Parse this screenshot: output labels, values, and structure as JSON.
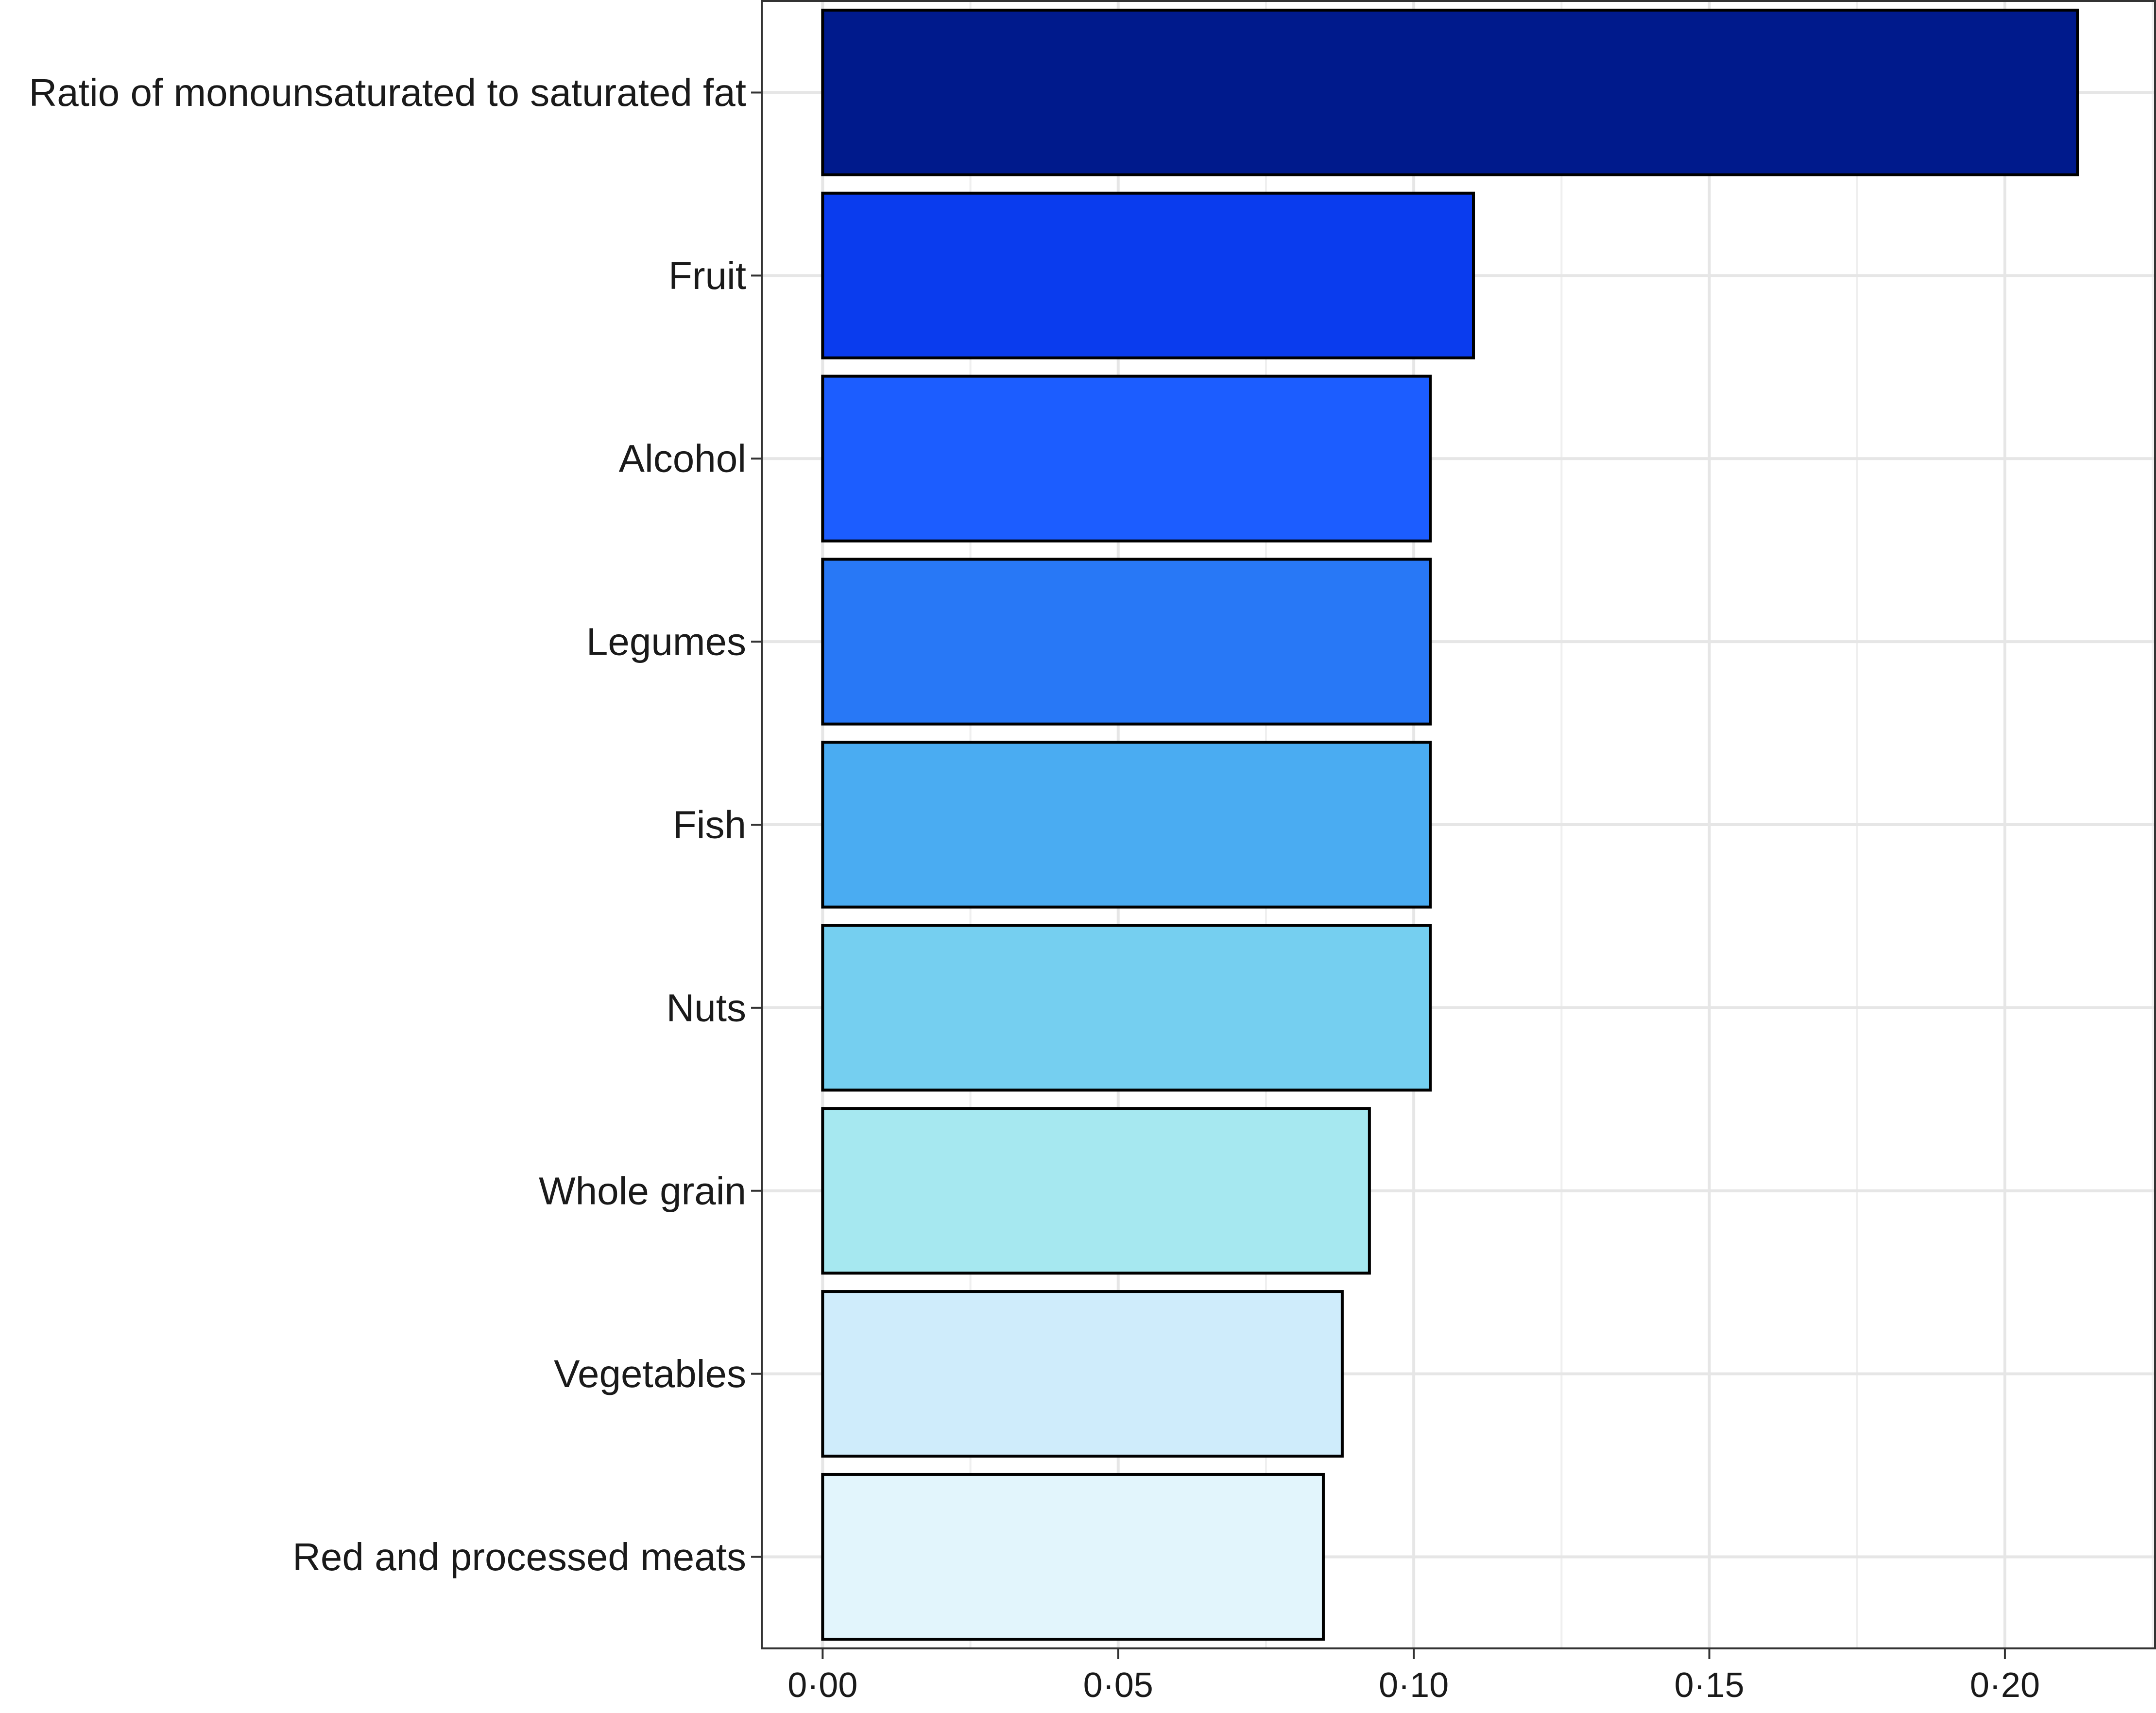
{
  "chart_data": {
    "type": "bar",
    "orientation": "horizontal",
    "title": "",
    "xlabel": "",
    "ylabel": "",
    "xlim": [
      -0.0103,
      0.2254
    ],
    "x_ticks": [
      0.0,
      0.05,
      0.1,
      0.15,
      0.2
    ],
    "x_tick_labels": [
      "0·00",
      "0·05",
      "0·10",
      "0·15",
      "0·20"
    ],
    "grid": true,
    "legend": "none",
    "categories": [
      "Ratio of monounsaturated to saturated fat",
      "Fruit",
      "Alcohol",
      "Legumes",
      "Fish",
      "Nuts",
      "Whole grain",
      "Vegetables",
      "Red and processed meats"
    ],
    "values": [
      0.2123,
      0.1101,
      0.1028,
      0.1028,
      0.1028,
      0.1028,
      0.0925,
      0.0879,
      0.0847
    ],
    "colors": [
      "#001a8c",
      "#0a3cee",
      "#1c5dff",
      "#2878f6",
      "#4aacf2",
      "#75cff0",
      "#a6e8f0",
      "#cfecfb",
      "#e2f5fc"
    ]
  }
}
